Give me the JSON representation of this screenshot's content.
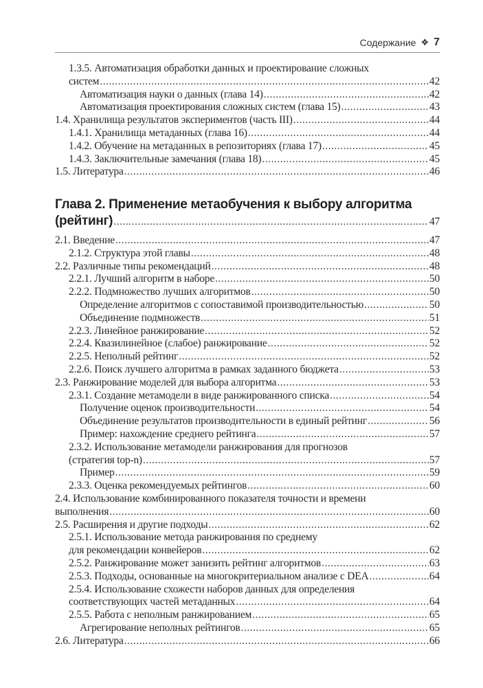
{
  "header": {
    "section": "Содержание",
    "ornament": "❖",
    "page_number": "7"
  },
  "block1": [
    {
      "level": 1,
      "line1": "1.3.5. Автоматизация обработки данных и проектирование сложных",
      "text": "систем",
      "page": "42"
    },
    {
      "level": 2,
      "text": "Автоматизация науки о данных (глава 14)",
      "page": "42"
    },
    {
      "level": 2,
      "text": "Автоматизация проектирования сложных систем (глава 15)",
      "page": "43"
    },
    {
      "level": 0,
      "text": "1.4. Хранилища результатов экспериментов (часть III)",
      "page": "44"
    },
    {
      "level": 1,
      "text": "1.4.1. Хранилища метаданных (глава 16)",
      "page": "44"
    },
    {
      "level": 1,
      "text": "1.4.2. Обучение на метаданных в репозиториях (глава 17)",
      "page": "45"
    },
    {
      "level": 1,
      "text": "1.4.3. Заключительные замечания (глава 18)",
      "page": "45"
    },
    {
      "level": 0,
      "text": "1.5. Литература",
      "page": "46"
    }
  ],
  "chapter": {
    "line1": "Глава 2. Применение метаобучения к выбору алгоритма",
    "text": "(рейтинг)",
    "page": "47"
  },
  "block2": [
    {
      "level": 0,
      "text": "2.1. Введение",
      "page": "47"
    },
    {
      "level": 1,
      "text": "2.1.2. Структура этой главы",
      "page": "48"
    },
    {
      "level": 0,
      "text": "2.2. Различные типы рекомендаций",
      "page": "48"
    },
    {
      "level": 1,
      "text": "2.2.1. Лучший алгоритм в наборе",
      "page": "50"
    },
    {
      "level": 1,
      "text": "2.2.2. Подмножество лучших алгоритмов",
      "page": "50"
    },
    {
      "level": 2,
      "text": "Определение алгоритмов с сопоставимой производительностью",
      "page": "50"
    },
    {
      "level": 2,
      "text": "Объединение подмножеств",
      "page": "51"
    },
    {
      "level": 1,
      "text": "2.2.3. Линейное ранжирование",
      "page": "52"
    },
    {
      "level": 1,
      "text": "2.2.4. Квазилинейное (слабое) ранжирование",
      "page": "52"
    },
    {
      "level": 1,
      "text": "2.2.5. Неполный рейтинг",
      "page": "52"
    },
    {
      "level": 1,
      "text": "2.2.6. Поиск лучшего алгоритма в рамках заданного бюджета",
      "page": "53"
    },
    {
      "level": 0,
      "text": "2.3. Ранжирование моделей для выбора алгоритма",
      "page": "53"
    },
    {
      "level": 1,
      "text": "2.3.1. Создание метамодели в виде ранжированного списка",
      "page": "54"
    },
    {
      "level": 2,
      "text": "Получение оценок производительности",
      "page": "54"
    },
    {
      "level": 2,
      "text": "Объединение результатов производительности в единый рейтинг",
      "page": "56"
    },
    {
      "level": 2,
      "text": "Пример: нахождение среднего рейтинга",
      "page": "57"
    },
    {
      "level": 1,
      "line1": "2.3.2. Использование метамодели ранжирования для прогнозов",
      "text": "(стратегия top-n)",
      "page": "57"
    },
    {
      "level": 2,
      "text": "Пример",
      "page": "59"
    },
    {
      "level": 1,
      "text": "2.3.3. Оценка рекомендуемых рейтингов",
      "page": "60"
    },
    {
      "level": 0,
      "line1": "2.4. Использование комбинированного показателя точности и времени",
      "text": "выполнения",
      "page": "60"
    },
    {
      "level": 0,
      "text": "2.5. Расширения и другие подходы",
      "page": "62"
    },
    {
      "level": 1,
      "line1": "2.5.1. Использование метода ранжирования по среднему",
      "text": "для рекомендации конвейеров",
      "page": "62"
    },
    {
      "level": 1,
      "text": "2.5.2. Ранжирование может занизить рейтинг алгоритмов",
      "page": "63"
    },
    {
      "level": 1,
      "text": "2.5.3. Подходы, основанные на многокритериальном анализе с DEA",
      "page": "64"
    },
    {
      "level": 1,
      "line1": "2.5.4. Использование схожести наборов данных для определения",
      "text": "соответствующих частей метаданных",
      "page": "64"
    },
    {
      "level": 1,
      "text": "2.5.5. Работа с неполным ранжированием",
      "page": "65"
    },
    {
      "level": 2,
      "text": "Агрегирование неполных рейтингов",
      "page": "65"
    },
    {
      "level": 0,
      "text": "2.6. Литература",
      "page": "66"
    }
  ]
}
